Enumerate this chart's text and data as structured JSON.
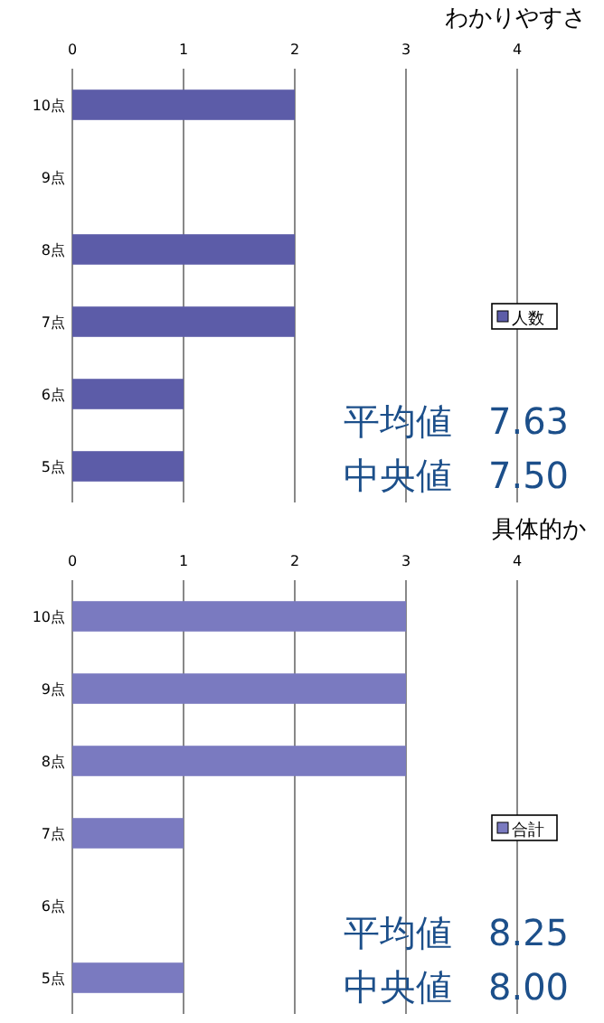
{
  "chart_data": [
    {
      "type": "bar",
      "orientation": "horizontal",
      "title": "わかりやすさ",
      "categories": [
        "10点",
        "9点",
        "8点",
        "7点",
        "6点",
        "5点"
      ],
      "series": [
        {
          "name": "人数",
          "color": "#5c5ca8",
          "values": [
            2,
            0,
            2,
            2,
            1,
            1
          ]
        }
      ],
      "xlim": [
        0,
        4
      ],
      "xticks": [
        0,
        1,
        2,
        3,
        4
      ],
      "grid": "x",
      "legend": "right",
      "annotations": [
        "平均値　7.63",
        "中央値　7.50"
      ]
    },
    {
      "type": "bar",
      "orientation": "horizontal",
      "title": "具体的か",
      "categories": [
        "10点",
        "9点",
        "8点",
        "7点",
        "6点",
        "5点"
      ],
      "series": [
        {
          "name": "合計",
          "color": "#7a7ac0",
          "values": [
            3,
            3,
            3,
            1,
            0,
            1
          ]
        }
      ],
      "xlim": [
        0,
        4
      ],
      "xticks": [
        0,
        1,
        2,
        3,
        4
      ],
      "grid": "x",
      "legend": "right",
      "annotations": [
        "平均値　8.25",
        "中央値　8.00"
      ]
    }
  ]
}
